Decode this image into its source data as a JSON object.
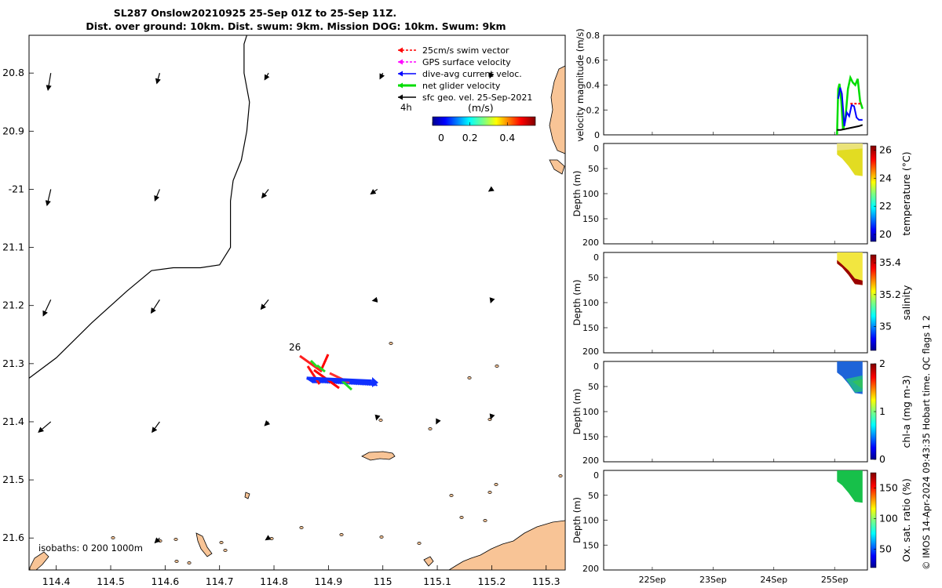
{
  "title": {
    "line1": "SL287 Onslow20210925 25-Sep 01Z to 25-Sep 11Z.",
    "line2": "Dist. over ground: 10km. Dist. swum: 9km. Mission DOG: 10km. Swum: 9km"
  },
  "legend": {
    "items": [
      {
        "label": "25cm/s swim vector",
        "color": "#ff0000"
      },
      {
        "label": "GPS surface velocity",
        "color": "#ff00ff"
      },
      {
        "label": "dive-avg current veloc.",
        "color": "#0000ff"
      },
      {
        "label": "net glider velocity",
        "color": "#00dd00"
      },
      {
        "label": "sfc geo. vel. 25-Sep-2021",
        "color": "#000000"
      }
    ],
    "time_label": "4h",
    "colorbar_title": "(m/s)"
  },
  "isobaths_label": "isobaths: 0   200  1000m",
  "day_label": "26",
  "credit": "© IMOS 14-Apr-2024 09:43:35 Hobart time. QC flags 1  2",
  "chart_data": [
    {
      "type": "scatter",
      "panel": "map",
      "xlabel": "",
      "ylabel": "",
      "xlim": [
        114.35,
        115.335
      ],
      "ylim": [
        -21.655,
        -20.735
      ],
      "x_ticks": [
        114.4,
        114.5,
        114.6,
        114.7,
        114.8,
        114.9,
        115,
        115.1,
        115.2,
        115.3
      ],
      "x_tick_labels": [
        "114.4",
        "114.5",
        "114.6",
        "114.7",
        "114.8",
        "114.9",
        "115",
        "115.1",
        "115.2",
        "115.3"
      ],
      "y_ticks": [
        -20.8,
        -20.9,
        -21,
        -21.1,
        -21.2,
        -21.3,
        -21.4,
        -21.5,
        -21.6
      ],
      "y_tick_labels": [
        "20.8",
        "20.9",
        "-21",
        "21.1",
        "21.2",
        "21.3",
        "21.4",
        "21.5",
        "21.6"
      ],
      "colorbar": {
        "ticks": [
          0,
          0.2,
          0.4
        ],
        "tick_labels": [
          "0",
          "0.2",
          "0.4"
        ],
        "range": [
          0,
          0.55
        ]
      },
      "isobath_0m": [
        [
          114.75,
          -20.735
        ],
        [
          114.745,
          -20.75
        ],
        [
          114.745,
          -20.8
        ],
        [
          114.755,
          -20.85
        ],
        [
          114.75,
          -20.9
        ],
        [
          114.74,
          -20.95
        ],
        [
          114.725,
          -20.985
        ],
        [
          114.72,
          -21.02
        ],
        [
          114.72,
          -21.1
        ],
        [
          114.7,
          -21.13
        ],
        [
          114.665,
          -21.135
        ],
        [
          114.615,
          -21.135
        ],
        [
          114.575,
          -21.14
        ],
        [
          114.53,
          -21.175
        ],
        [
          114.465,
          -21.23
        ],
        [
          114.4,
          -21.29
        ],
        [
          114.35,
          -21.325
        ]
      ],
      "sfc_vectors": [
        {
          "lon": 114.39,
          "lat": -20.8,
          "u": -0.03,
          "v": -0.18
        },
        {
          "lon": 114.59,
          "lat": -20.8,
          "u": -0.03,
          "v": -0.11
        },
        {
          "lon": 114.79,
          "lat": -20.8,
          "u": -0.04,
          "v": -0.07
        },
        {
          "lon": 115.0,
          "lat": -20.8,
          "u": -0.03,
          "v": -0.06
        },
        {
          "lon": 115.2,
          "lat": -20.8,
          "u": -0.02,
          "v": -0.05
        },
        {
          "lon": 114.39,
          "lat": -21.0,
          "u": -0.04,
          "v": -0.17
        },
        {
          "lon": 114.59,
          "lat": -21.0,
          "u": -0.05,
          "v": -0.12
        },
        {
          "lon": 114.79,
          "lat": -21.0,
          "u": -0.07,
          "v": -0.09
        },
        {
          "lon": 114.99,
          "lat": -21.0,
          "u": -0.07,
          "v": -0.05
        },
        {
          "lon": 115.2,
          "lat": -21.0,
          "u": -0.03,
          "v": -0.02
        },
        {
          "lon": 114.39,
          "lat": -21.19,
          "u": -0.08,
          "v": -0.17
        },
        {
          "lon": 114.59,
          "lat": -21.19,
          "u": -0.09,
          "v": -0.14
        },
        {
          "lon": 114.79,
          "lat": -21.19,
          "u": -0.08,
          "v": -0.1
        },
        {
          "lon": 114.99,
          "lat": -21.19,
          "u": -0.05,
          "v": -0.01
        },
        {
          "lon": 115.2,
          "lat": -21.19,
          "u": -0.01,
          "v": -0.03
        },
        {
          "lon": 114.39,
          "lat": -21.4,
          "u": -0.13,
          "v": -0.11
        },
        {
          "lon": 114.59,
          "lat": -21.4,
          "u": -0.08,
          "v": -0.11
        },
        {
          "lon": 114.79,
          "lat": -21.4,
          "u": -0.04,
          "v": -0.04
        },
        {
          "lon": 114.99,
          "lat": -21.39,
          "u": -0.01,
          "v": -0.04
        },
        {
          "lon": 115.1,
          "lat": -21.4,
          "u": -0.01,
          "v": -0.02
        },
        {
          "lon": 115.2,
          "lat": -21.39,
          "u": -0.01,
          "v": -0.03
        },
        {
          "lon": 114.59,
          "lat": -21.6,
          "u": -0.05,
          "v": -0.05
        },
        {
          "lon": 114.79,
          "lat": -21.6,
          "u": -0.03,
          "v": -0.02
        }
      ],
      "glider_track": [
        [
          114.86,
          -21.325
        ],
        [
          114.88,
          -21.325
        ],
        [
          114.9,
          -21.326
        ],
        [
          114.92,
          -21.327
        ],
        [
          114.94,
          -21.328
        ],
        [
          114.96,
          -21.329
        ],
        [
          114.98,
          -21.33
        ]
      ]
    },
    {
      "type": "line",
      "panel": "velocity",
      "ylabel": "velocity magnitude (m/s)",
      "ylim": [
        0,
        0.8
      ],
      "y_ticks": [
        0,
        0.2,
        0.4,
        0.6,
        0.8
      ],
      "x_ticks": [
        "22Sep",
        "23Sep",
        "24Sep",
        "25Sep"
      ],
      "series": [
        {
          "color": "#00dd00",
          "x": [
            25.04,
            25.06,
            25.08,
            25.11,
            25.14,
            25.18,
            25.22,
            25.26,
            25.3,
            25.34,
            25.38,
            25.42,
            25.46
          ],
          "values": [
            0.0,
            0.37,
            0.41,
            0.27,
            0.04,
            0.14,
            0.37,
            0.46,
            0.42,
            0.4,
            0.45,
            0.27,
            0.21
          ]
        },
        {
          "color": "#0000ff",
          "x": [
            25.06,
            25.09,
            25.12,
            25.16,
            25.2,
            25.24,
            25.28,
            25.32,
            25.36,
            25.4,
            25.44,
            25.46
          ],
          "values": [
            0.29,
            0.38,
            0.33,
            0.07,
            0.18,
            0.15,
            0.24,
            0.23,
            0.14,
            0.12,
            0.12,
            0.12
          ]
        },
        {
          "color": "#000000",
          "x": [
            25.04,
            25.1,
            25.2,
            25.3,
            25.4,
            25.46
          ],
          "values": [
            0.04,
            0.04,
            0.05,
            0.06,
            0.07,
            0.08
          ]
        },
        {
          "color": "#ff0000",
          "x": [
            25.26,
            25.3,
            25.34,
            25.38,
            25.42,
            25.44
          ],
          "values": [
            0.25,
            0.25,
            0.25,
            0.25,
            0.25,
            0.25
          ]
        }
      ]
    },
    {
      "type": "heatmap",
      "panel": "temperature",
      "ylabel": "Depth (m)",
      "colorbar_label": "temperature (°C)",
      "colorbar_ticks": [
        20,
        22,
        24,
        26
      ],
      "colorbar_range": [
        19.5,
        26.3
      ],
      "y_ticks": [
        0,
        50,
        100,
        150,
        200
      ],
      "values": [
        25.6,
        25.6,
        25.6,
        25.5,
        25.6,
        25.5,
        25.4,
        25.5,
        25.5,
        25.4
      ]
    },
    {
      "type": "heatmap",
      "panel": "salinity",
      "ylabel": "Depth (m)",
      "colorbar_label": "salinity",
      "colorbar_ticks": [
        35,
        35.2,
        35.4
      ],
      "colorbar_range": [
        34.85,
        35.45
      ],
      "y_ticks": [
        0,
        50,
        100,
        150,
        200
      ],
      "surface_value": 35.33,
      "deep_value": 35.45
    },
    {
      "type": "heatmap",
      "panel": "chl-a",
      "ylabel": "Depth (m)",
      "colorbar_label": "chl-a (mg m-3)",
      "colorbar_ticks": [
        0,
        1,
        2
      ],
      "colorbar_range": [
        0,
        2
      ],
      "y_ticks": [
        0,
        50,
        100,
        150,
        200
      ],
      "surface_value": 0.2,
      "deep_value": 1.3
    },
    {
      "type": "heatmap",
      "panel": "oxygen",
      "ylabel": "Depth (m)",
      "colorbar_label": "Ox. sat. ratio (%)",
      "colorbar_ticks": [
        50,
        100,
        150
      ],
      "colorbar_range": [
        20,
        175
      ],
      "y_ticks": [
        0,
        50,
        100,
        150,
        200
      ],
      "surface_value": 99,
      "deep_value": 97
    }
  ]
}
